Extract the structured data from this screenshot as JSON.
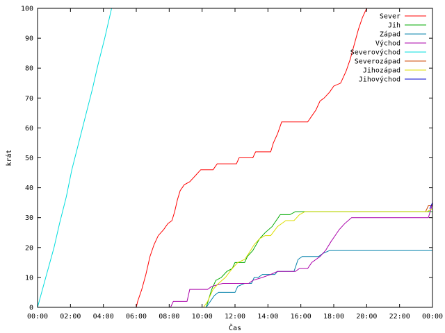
{
  "chart_data": {
    "type": "line",
    "title": "",
    "xlabel": "Čas",
    "ylabel": "krát",
    "xlim": [
      "00:00",
      "24:00"
    ],
    "ylim": [
      0,
      100
    ],
    "x_ticks": [
      "00:00",
      "02:00",
      "04:00",
      "06:00",
      "08:00",
      "10:00",
      "12:00",
      "14:00",
      "16:00",
      "18:00",
      "20:00",
      "22:00",
      "00:00"
    ],
    "y_ticks": [
      0,
      10,
      20,
      30,
      40,
      50,
      60,
      70,
      80,
      90,
      100
    ],
    "grid": false,
    "legend_position": "top-right",
    "series": [
      {
        "name": "Sever",
        "color": "#ff0000",
        "points": [
          [
            "06:00",
            0
          ],
          [
            "06:05",
            2
          ],
          [
            "06:20",
            6
          ],
          [
            "06:35",
            11
          ],
          [
            "06:50",
            17
          ],
          [
            "07:05",
            21
          ],
          [
            "07:20",
            24
          ],
          [
            "07:40",
            26
          ],
          [
            "07:55",
            28
          ],
          [
            "08:10",
            29
          ],
          [
            "08:20",
            32
          ],
          [
            "08:30",
            36
          ],
          [
            "08:40",
            39
          ],
          [
            "08:55",
            41
          ],
          [
            "09:15",
            42
          ],
          [
            "09:35",
            44
          ],
          [
            "09:55",
            46
          ],
          [
            "10:40",
            46
          ],
          [
            "10:55",
            48
          ],
          [
            "12:05",
            48
          ],
          [
            "12:15",
            50
          ],
          [
            "13:05",
            50
          ],
          [
            "13:15",
            52
          ],
          [
            "14:10",
            52
          ],
          [
            "14:20",
            55
          ],
          [
            "14:35",
            58
          ],
          [
            "14:50",
            62
          ],
          [
            "16:25",
            62
          ],
          [
            "16:40",
            64
          ],
          [
            "16:55",
            66
          ],
          [
            "17:10",
            69
          ],
          [
            "17:25",
            70
          ],
          [
            "17:45",
            72
          ],
          [
            "18:00",
            74
          ],
          [
            "18:25",
            75
          ],
          [
            "18:45",
            79
          ],
          [
            "19:00",
            83
          ],
          [
            "19:15",
            88
          ],
          [
            "19:30",
            93
          ],
          [
            "19:45",
            97
          ],
          [
            "20:00",
            100
          ]
        ]
      },
      {
        "name": "Jih",
        "color": "#00aa00",
        "points": [
          [
            "10:15",
            0
          ],
          [
            "10:25",
            3
          ],
          [
            "10:35",
            6
          ],
          [
            "10:50",
            9
          ],
          [
            "11:10",
            10
          ],
          [
            "11:30",
            12
          ],
          [
            "11:50",
            13
          ],
          [
            "12:00",
            15
          ],
          [
            "12:35",
            15
          ],
          [
            "12:45",
            17
          ],
          [
            "13:05",
            19
          ],
          [
            "13:30",
            23
          ],
          [
            "13:50",
            25
          ],
          [
            "14:15",
            27
          ],
          [
            "14:30",
            29
          ],
          [
            "14:45",
            31
          ],
          [
            "15:20",
            31
          ],
          [
            "15:40",
            32
          ],
          [
            "24:00",
            32
          ]
        ]
      },
      {
        "name": "Západ",
        "color": "#0080aa",
        "points": [
          [
            "10:15",
            0
          ],
          [
            "10:30",
            2
          ],
          [
            "10:45",
            4
          ],
          [
            "11:00",
            5
          ],
          [
            "12:00",
            5
          ],
          [
            "12:10",
            7
          ],
          [
            "12:35",
            8
          ],
          [
            "13:00",
            8
          ],
          [
            "13:10",
            10
          ],
          [
            "13:25",
            10
          ],
          [
            "13:40",
            11
          ],
          [
            "14:25",
            11
          ],
          [
            "14:35",
            12
          ],
          [
            "15:35",
            12
          ],
          [
            "15:50",
            16
          ],
          [
            "16:05",
            17
          ],
          [
            "17:05",
            17
          ],
          [
            "17:20",
            18
          ],
          [
            "17:45",
            19
          ],
          [
            "24:00",
            19
          ]
        ]
      },
      {
        "name": "Východ",
        "color": "#aa00aa",
        "points": [
          [
            "08:05",
            0
          ],
          [
            "08:15",
            2
          ],
          [
            "09:05",
            2
          ],
          [
            "09:15",
            6
          ],
          [
            "10:20",
            6
          ],
          [
            "10:35",
            7
          ],
          [
            "11:15",
            8
          ],
          [
            "12:50",
            8
          ],
          [
            "13:05",
            9
          ],
          [
            "13:40",
            10
          ],
          [
            "14:10",
            11
          ],
          [
            "14:35",
            12
          ],
          [
            "15:40",
            12
          ],
          [
            "15:55",
            13
          ],
          [
            "16:25",
            13
          ],
          [
            "16:40",
            15
          ],
          [
            "16:55",
            16
          ],
          [
            "17:10",
            17
          ],
          [
            "17:30",
            19
          ],
          [
            "17:50",
            22
          ],
          [
            "18:05",
            24
          ],
          [
            "18:20",
            26
          ],
          [
            "18:40",
            28
          ],
          [
            "19:05",
            30
          ],
          [
            "23:45",
            30
          ],
          [
            "23:55",
            33
          ],
          [
            "24:00",
            35
          ]
        ]
      },
      {
        "name": "Severovýchod",
        "color": "#00dddd",
        "points": [
          [
            "00:00",
            0
          ],
          [
            "00:30",
            10
          ],
          [
            "01:00",
            20
          ],
          [
            "01:20",
            28
          ],
          [
            "01:45",
            37
          ],
          [
            "02:05",
            46
          ],
          [
            "02:30",
            55
          ],
          [
            "02:55",
            64
          ],
          [
            "03:20",
            73
          ],
          [
            "03:40",
            81
          ],
          [
            "04:05",
            90
          ],
          [
            "04:30",
            100
          ]
        ]
      },
      {
        "name": "Severozápad",
        "color": "#cc4400",
        "points": [
          [
            "23:35",
            32
          ],
          [
            "23:45",
            34
          ],
          [
            "24:00",
            34
          ]
        ]
      },
      {
        "name": "Jihozápad",
        "color": "#dddd00",
        "points": [
          [
            "10:05",
            0
          ],
          [
            "10:20",
            2
          ],
          [
            "10:40",
            6
          ],
          [
            "11:00",
            8
          ],
          [
            "11:25",
            10
          ],
          [
            "11:50",
            13
          ],
          [
            "12:10",
            15
          ],
          [
            "12:35",
            16
          ],
          [
            "12:50",
            18
          ],
          [
            "13:10",
            21
          ],
          [
            "13:30",
            23
          ],
          [
            "13:50",
            24
          ],
          [
            "14:10",
            24
          ],
          [
            "14:35",
            27
          ],
          [
            "15:05",
            29
          ],
          [
            "15:35",
            29
          ],
          [
            "15:55",
            31
          ],
          [
            "16:15",
            32
          ],
          [
            "23:40",
            32
          ],
          [
            "24:00",
            33
          ]
        ]
      },
      {
        "name": "Jihovýchod",
        "color": "#0000cc",
        "points": [
          [
            "23:50",
            33
          ],
          [
            "24:00",
            35
          ]
        ]
      }
    ]
  }
}
